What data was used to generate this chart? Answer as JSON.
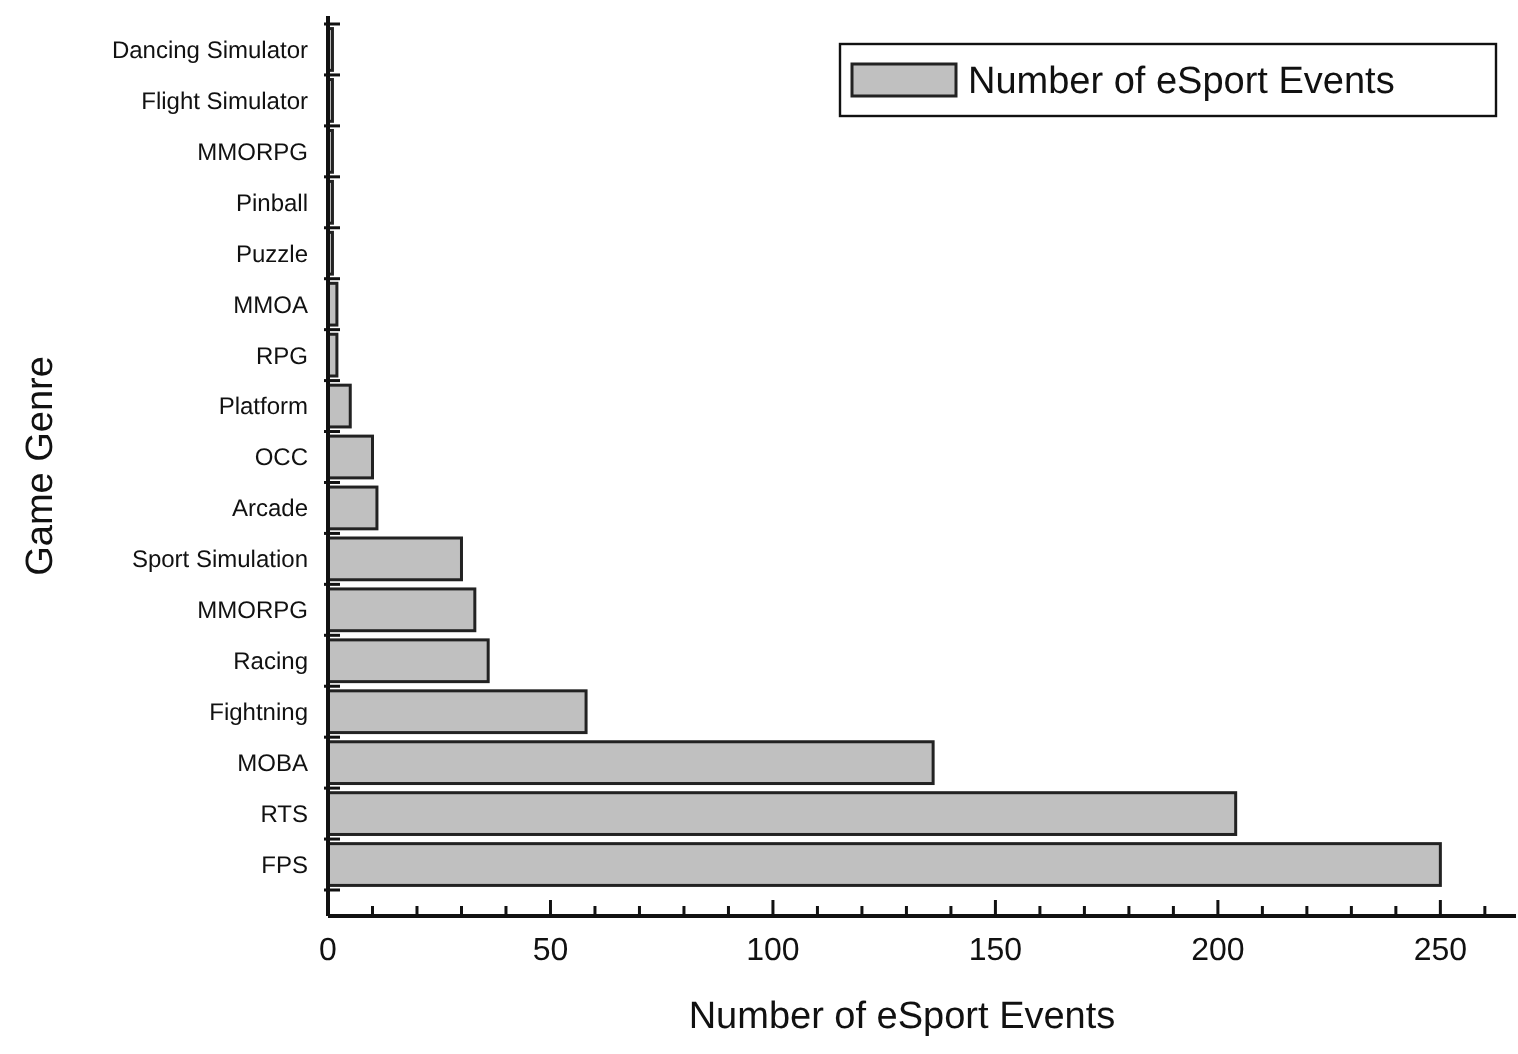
{
  "chart_data": {
    "type": "bar",
    "orientation": "horizontal",
    "xlabel": "Number of eSport Events",
    "ylabel": "Game Genre",
    "categories": [
      "Dancing Simulator",
      "Flight Simulator",
      "MMORPG",
      "Pinball",
      "Puzzle",
      "MMOA",
      "RPG",
      "Platform",
      "OCC",
      "Arcade",
      "Sport Simulation",
      "MMORPG",
      "Racing",
      "Fightning",
      "MOBA",
      "RTS",
      "FPS"
    ],
    "series": [
      {
        "name": "Number of eSport Events",
        "color": "#c0c0c0",
        "values": [
          1,
          1,
          1,
          1,
          1,
          2,
          2,
          5,
          10,
          11,
          30,
          33,
          36,
          58,
          136,
          204,
          250
        ]
      }
    ],
    "xlim": [
      0,
      267
    ],
    "xticks": [
      0,
      {
        "value": 10,
        "label": null
      },
      {
        "value": 20,
        "label": null
      },
      {
        "value": 30,
        "label": null
      },
      {
        "value": 40,
        "label": null
      },
      50,
      {
        "value": 60,
        "label": null
      },
      {
        "value": 70,
        "label": null
      },
      {
        "value": 80,
        "label": null
      },
      {
        "value": 90,
        "label": null
      },
      100,
      {
        "value": 110,
        "label": null
      },
      {
        "value": 120,
        "label": null
      },
      {
        "value": 130,
        "label": null
      },
      {
        "value": 140,
        "label": null
      },
      150,
      {
        "value": 160,
        "label": null
      },
      {
        "value": 170,
        "label": null
      },
      {
        "value": 180,
        "label": null
      },
      {
        "value": 190,
        "label": null
      },
      200,
      {
        "value": 210,
        "label": null
      },
      {
        "value": 220,
        "label": null
      },
      {
        "value": 230,
        "label": null
      },
      {
        "value": 240,
        "label": null
      },
      250,
      {
        "value": 260,
        "label": null
      }
    ],
    "grid": false,
    "legend": "top right"
  }
}
